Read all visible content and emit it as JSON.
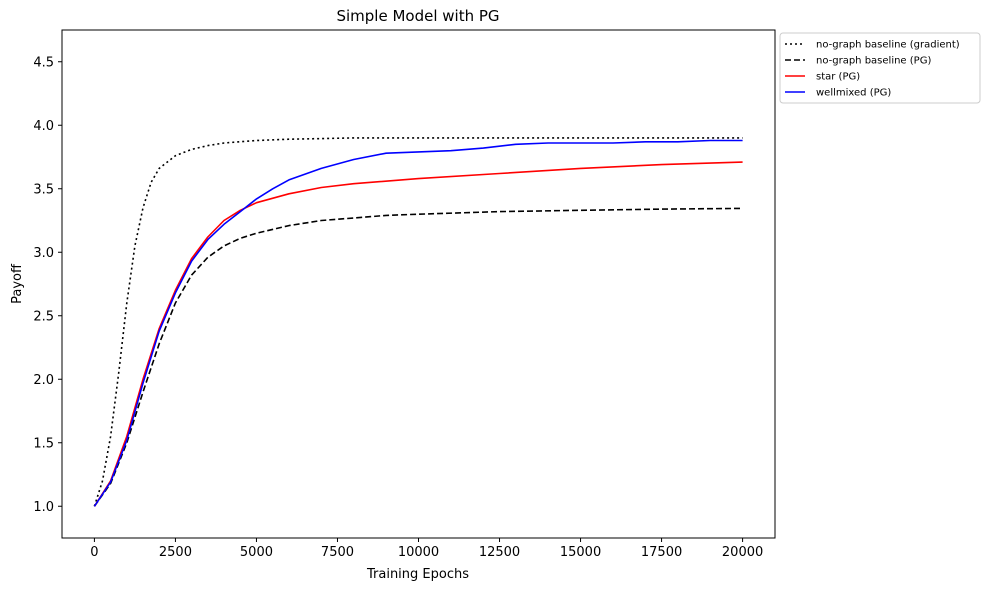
{
  "chart_data": {
    "type": "line",
    "title": "Simple Model with PG",
    "xlabel": "Training Epochs",
    "ylabel": "Payoff",
    "xlim": [
      -1000,
      21000
    ],
    "ylim": [
      0.75,
      4.75
    ],
    "xticks": [
      0,
      2500,
      5000,
      7500,
      10000,
      12500,
      15000,
      17500,
      20000
    ],
    "yticks": [
      1.0,
      1.5,
      2.0,
      2.5,
      3.0,
      3.5,
      4.0,
      4.5
    ],
    "xtick_labels": [
      "0",
      "2500",
      "5000",
      "7500",
      "10000",
      "12500",
      "15000",
      "17500",
      "20000"
    ],
    "ytick_labels": [
      "1.0",
      "1.5",
      "2.0",
      "2.5",
      "3.0",
      "3.5",
      "4.0",
      "4.5"
    ],
    "grid": false,
    "legend_placement": "outside-top-right",
    "series": [
      {
        "name": "no-graph baseline (gradient)",
        "color": "#000000",
        "style": "dotted",
        "x": [
          0,
          250,
          500,
          750,
          1000,
          1250,
          1500,
          1750,
          2000,
          2500,
          3000,
          3500,
          4000,
          5000,
          6000,
          7000,
          8000,
          10000,
          12500,
          15000,
          17500,
          20000
        ],
        "y": [
          1.0,
          1.2,
          1.55,
          2.05,
          2.6,
          3.05,
          3.35,
          3.55,
          3.66,
          3.76,
          3.81,
          3.84,
          3.86,
          3.88,
          3.89,
          3.895,
          3.9,
          3.9,
          3.9,
          3.9,
          3.9,
          3.9
        ]
      },
      {
        "name": "no-graph baseline (PG)",
        "color": "#000000",
        "style": "dashed",
        "x": [
          0,
          500,
          1000,
          1500,
          2000,
          2500,
          3000,
          3500,
          4000,
          4500,
          5000,
          6000,
          7000,
          8000,
          9000,
          10000,
          12500,
          15000,
          17500,
          20000
        ],
        "y": [
          1.0,
          1.18,
          1.5,
          1.9,
          2.28,
          2.6,
          2.82,
          2.96,
          3.05,
          3.11,
          3.15,
          3.21,
          3.25,
          3.27,
          3.29,
          3.3,
          3.32,
          3.33,
          3.34,
          3.345
        ]
      },
      {
        "name": "star (PG)",
        "color": "#ff0000",
        "style": "solid",
        "x": [
          0,
          500,
          1000,
          1500,
          2000,
          2500,
          3000,
          3500,
          4000,
          4500,
          5000,
          6000,
          7000,
          8000,
          10000,
          12500,
          15000,
          17500,
          20000
        ],
        "y": [
          1.0,
          1.2,
          1.55,
          2.0,
          2.4,
          2.7,
          2.95,
          3.12,
          3.25,
          3.33,
          3.39,
          3.46,
          3.51,
          3.54,
          3.58,
          3.62,
          3.66,
          3.69,
          3.71
        ]
      },
      {
        "name": "wellmixed (PG)",
        "color": "#0000ff",
        "style": "solid",
        "x": [
          0,
          500,
          1000,
          1500,
          2000,
          2500,
          3000,
          3500,
          4000,
          4500,
          5000,
          5500,
          6000,
          7000,
          8000,
          9000,
          10000,
          11000,
          12000,
          13000,
          14000,
          15000,
          16000,
          17000,
          18000,
          19000,
          20000
        ],
        "y": [
          1.0,
          1.19,
          1.52,
          1.97,
          2.38,
          2.68,
          2.93,
          3.1,
          3.22,
          3.32,
          3.42,
          3.5,
          3.57,
          3.66,
          3.73,
          3.78,
          3.79,
          3.8,
          3.82,
          3.85,
          3.86,
          3.86,
          3.86,
          3.87,
          3.87,
          3.88,
          3.88
        ]
      }
    ]
  }
}
